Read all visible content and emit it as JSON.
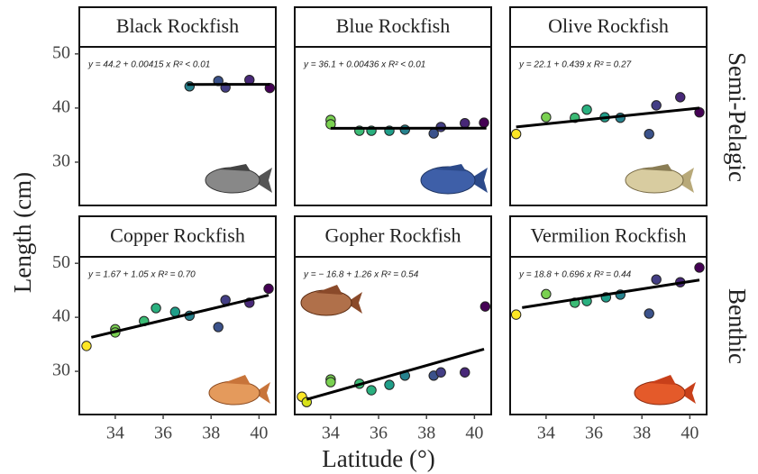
{
  "figure": {
    "xlabel": "Latitude (°)",
    "ylabel": "Length (cm)",
    "row_labels": [
      "Semi-Pelagic",
      "Benthic"
    ]
  },
  "chart_data": [
    {
      "type": "scatter",
      "title": "Black Rockfish",
      "annotation": "y = 44.2 + 0.00415 x   R² < 0.01",
      "x": [
        37.1,
        38.3,
        38.6,
        39.6,
        40.45
      ],
      "values": [
        44,
        45,
        43.8,
        45.2,
        43.7
      ],
      "colors": [
        "#26828e",
        "#3b528b",
        "#433e85",
        "#482878",
        "#440154"
      ],
      "fit": {
        "x": [
          37,
          40.45
        ],
        "y": [
          44.35,
          44.37
        ]
      },
      "fit_color": "#000000",
      "xlim": [
        32.5,
        40.7
      ],
      "ylim": [
        22,
        51.3
      ],
      "yticks": [
        30,
        40,
        50
      ]
    },
    {
      "type": "scatter",
      "title": "Blue Rockfish",
      "annotation": "y = 36.1 + 0.00436 x   R² < 0.01",
      "x": [
        34.0,
        34.0,
        35.2,
        35.7,
        36.45,
        37.1,
        38.3,
        38.6,
        39.6,
        40.4
      ],
      "values": [
        37.8,
        37.0,
        35.8,
        35.8,
        35.8,
        36,
        35.3,
        36.5,
        37.2,
        37.3
      ],
      "colors": [
        "#7ad151",
        "#7ad151",
        "#3bbb75",
        "#2ab07f",
        "#1f9e89",
        "#26828e",
        "#3b528b",
        "#433e85",
        "#482878",
        "#440154"
      ],
      "fit": {
        "x": [
          34,
          40.5
        ],
        "y": [
          36.25,
          36.28
        ]
      },
      "fit_color": "#000000",
      "xlim": [
        32.5,
        40.7
      ],
      "ylim": [
        22,
        51.3
      ]
    },
    {
      "type": "scatter",
      "title": "Olive Rockfish",
      "annotation": "y = 22.1 + 0.439 x   R² = 0.27",
      "x": [
        32.75,
        34.0,
        35.2,
        35.7,
        36.45,
        37.1,
        38.3,
        38.6,
        39.6,
        40.4
      ],
      "values": [
        35.2,
        38.3,
        38.2,
        39.7,
        38.3,
        38.2,
        35.2,
        40.5,
        42,
        39.2
      ],
      "colors": [
        "#fde725",
        "#7ad151",
        "#3bbb75",
        "#2ab07f",
        "#1f9e89",
        "#26828e",
        "#3b528b",
        "#433e85",
        "#482878",
        "#440154"
      ],
      "fit": {
        "x": [
          32.75,
          40.4
        ],
        "y": [
          36.5,
          40
        ]
      },
      "fit_color": "#000000",
      "xlim": [
        32.5,
        40.7
      ],
      "ylim": [
        22,
        51.3
      ]
    },
    {
      "type": "scatter",
      "title": "Copper Rockfish",
      "annotation": "y = 1.67 + 1.05 x   R² = 0.70",
      "x": [
        32.8,
        34.0,
        34.0,
        35.2,
        35.7,
        36.5,
        37.1,
        38.3,
        38.6,
        39.6,
        40.4
      ],
      "values": [
        34.7,
        37.8,
        37.2,
        39.3,
        41.7,
        41,
        40.3,
        38.2,
        43.2,
        42.7,
        45.3
      ],
      "colors": [
        "#fde725",
        "#7ad151",
        "#7ad151",
        "#3bbb75",
        "#2ab07f",
        "#1f9e89",
        "#26828e",
        "#3b528b",
        "#433e85",
        "#482878",
        "#440154"
      ],
      "fit": {
        "x": [
          33,
          40.4
        ],
        "y": [
          36.3,
          44.1
        ]
      },
      "fit_color": "#000000",
      "xlim": [
        32.5,
        40.7
      ],
      "ylim": [
        22,
        51.2
      ],
      "xticks": [
        34,
        36,
        38,
        40
      ],
      "yticks": [
        30,
        40,
        50
      ]
    },
    {
      "type": "scatter",
      "title": "Gopher Rockfish",
      "annotation": "y = − 16.8 + 1.26 x   R² = 0.54",
      "x": [
        32.8,
        33.0,
        34.0,
        34.0,
        35.2,
        35.7,
        36.45,
        37.1,
        38.3,
        38.6,
        39.6,
        40.45
      ],
      "values": [
        25.3,
        24.3,
        28.5,
        28,
        27.7,
        26.5,
        27.5,
        29.2,
        29.2,
        29.8,
        29.8,
        42
      ],
      "colors": [
        "#fde725",
        "#d8e219",
        "#7ad151",
        "#7ad151",
        "#3bbb75",
        "#2ab07f",
        "#1f9e89",
        "#26828e",
        "#3b528b",
        "#433e85",
        "#482878",
        "#440154"
      ],
      "fit": {
        "x": [
          33,
          40.4
        ],
        "y": [
          24.8,
          34.1
        ]
      },
      "fit_color": "#000000",
      "xlim": [
        32.5,
        40.7
      ],
      "ylim": [
        22,
        51.2
      ],
      "xticks": [
        34,
        36,
        38,
        40
      ]
    },
    {
      "type": "scatter",
      "title": "Vermilion Rockfish",
      "annotation": "y = 18.8 + 0.696 x   R² = 0.44",
      "x": [
        32.75,
        34.0,
        35.2,
        35.7,
        36.5,
        37.1,
        38.3,
        38.6,
        39.6,
        40.4
      ],
      "values": [
        40.5,
        44.3,
        42.7,
        43,
        43.7,
        44.2,
        40.7,
        47,
        46.5,
        49.2
      ],
      "colors": [
        "#fde725",
        "#7ad151",
        "#3bbb75",
        "#2ab07f",
        "#1f9e89",
        "#26828e",
        "#3b528b",
        "#433e85",
        "#482878",
        "#440154"
      ],
      "fit": {
        "x": [
          33,
          40.4
        ],
        "y": [
          41.8,
          46.9
        ]
      },
      "fit_color": "#000000",
      "xlim": [
        32.5,
        40.7
      ],
      "ylim": [
        22,
        51.2
      ],
      "xticks": [
        34,
        36,
        38,
        40
      ]
    }
  ]
}
